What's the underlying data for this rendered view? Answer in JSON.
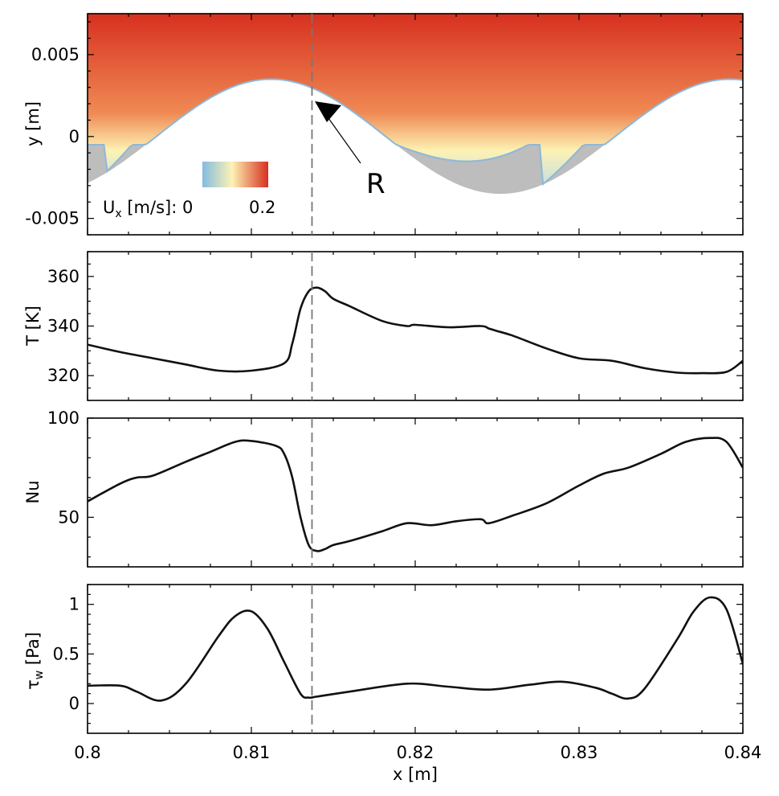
{
  "chart_data": [
    {
      "type": "heatmap",
      "name": "velocity-field",
      "ylabel": "y [m]",
      "xlim": [
        0.8,
        0.84
      ],
      "ylim": [
        -0.006,
        0.0075
      ],
      "yticks": [
        -0.005,
        0,
        0.005
      ],
      "ytick_labels": [
        "-0.005",
        "0",
        "0.005"
      ],
      "colorbar": {
        "label_prefix": "U",
        "label_sub": "x",
        "label_suffix": " [m/s]: 0",
        "max_label": "0.2",
        "min": 0,
        "max": 0.2
      },
      "colors": {
        "high": "#d7301f",
        "mid": "#fdf2b4",
        "low": "#82bce2",
        "solid": "#bdbdbd"
      },
      "wall": {
        "x0": 0.8,
        "period": 0.028,
        "y_peak": 0.0035,
        "y_trough": -0.0035,
        "x_peak": 0.8112,
        "x_trough_flat_max": -0.0005
      },
      "annotation": {
        "text": "R",
        "target_x": 0.8137,
        "target_y": 0.0022
      }
    },
    {
      "type": "line",
      "name": "temperature",
      "ylabel": "T [K]",
      "ylim": [
        310,
        370
      ],
      "yticks": [
        320,
        340,
        360
      ],
      "x": [
        0.8,
        0.802,
        0.804,
        0.806,
        0.808,
        0.81,
        0.812,
        0.8125,
        0.813,
        0.8135,
        0.814,
        0.8145,
        0.815,
        0.816,
        0.818,
        0.8195,
        0.82,
        0.822,
        0.824,
        0.8245,
        0.825,
        0.826,
        0.828,
        0.83,
        0.832,
        0.834,
        0.836,
        0.8375,
        0.839,
        0.84
      ],
      "values": [
        332.5,
        329.5,
        327,
        324.5,
        322,
        322,
        325,
        333,
        347,
        354,
        355.5,
        354,
        351,
        348,
        342,
        340,
        340.5,
        339.5,
        340,
        339,
        338,
        336,
        331,
        327,
        326,
        323,
        321.2,
        321,
        321.5,
        326
      ]
    },
    {
      "type": "line",
      "name": "nusselt",
      "ylabel": "Nu",
      "ylim": [
        25,
        100
      ],
      "yticks": [
        50,
        100
      ],
      "x": [
        0.8,
        0.802,
        0.803,
        0.804,
        0.806,
        0.8075,
        0.809,
        0.81,
        0.8115,
        0.812,
        0.8125,
        0.813,
        0.8135,
        0.814,
        0.8145,
        0.815,
        0.816,
        0.818,
        0.8195,
        0.821,
        0.8225,
        0.824,
        0.8245,
        0.826,
        0.828,
        0.83,
        0.8315,
        0.833,
        0.835,
        0.8365,
        0.838,
        0.839,
        0.84
      ],
      "values": [
        58,
        67,
        70,
        71,
        78,
        83,
        88,
        88.5,
        86,
        82,
        70,
        50,
        36,
        33,
        34,
        36,
        38,
        43,
        47,
        46,
        48,
        49,
        47,
        51,
        57,
        66,
        72,
        75,
        82,
        88,
        90,
        88,
        75
      ]
    },
    {
      "type": "line",
      "name": "wall-shear",
      "ylabel_symbol": "τ",
      "ylabel_sub": "w",
      "ylabel_suffix": " [Pa]",
      "xlabel": "x [m]",
      "xlim": [
        0.8,
        0.84
      ],
      "xticks": [
        0.8,
        0.81,
        0.82,
        0.83,
        0.84
      ],
      "xtick_labels": [
        "0.8",
        "0.81",
        "0.82",
        "0.83",
        "0.84"
      ],
      "ylim": [
        -0.3,
        1.2
      ],
      "yticks": [
        0,
        0.5,
        1
      ],
      "ytick_labels": [
        "0",
        "0.5",
        "1"
      ],
      "x": [
        0.8,
        0.802,
        0.803,
        0.8045,
        0.806,
        0.808,
        0.809,
        0.81,
        0.811,
        0.812,
        0.813,
        0.8135,
        0.814,
        0.816,
        0.8195,
        0.822,
        0.8245,
        0.827,
        0.829,
        0.831,
        0.832,
        0.833,
        0.834,
        0.836,
        0.837,
        0.838,
        0.839,
        0.84
      ],
      "values": [
        0.18,
        0.18,
        0.12,
        0.03,
        0.2,
        0.68,
        0.88,
        0.93,
        0.75,
        0.42,
        0.1,
        0.06,
        0.07,
        0.12,
        0.2,
        0.17,
        0.14,
        0.19,
        0.22,
        0.16,
        0.1,
        0.05,
        0.15,
        0.65,
        0.93,
        1.07,
        0.95,
        0.4
      ]
    }
  ],
  "reference_line_x": 0.8137
}
